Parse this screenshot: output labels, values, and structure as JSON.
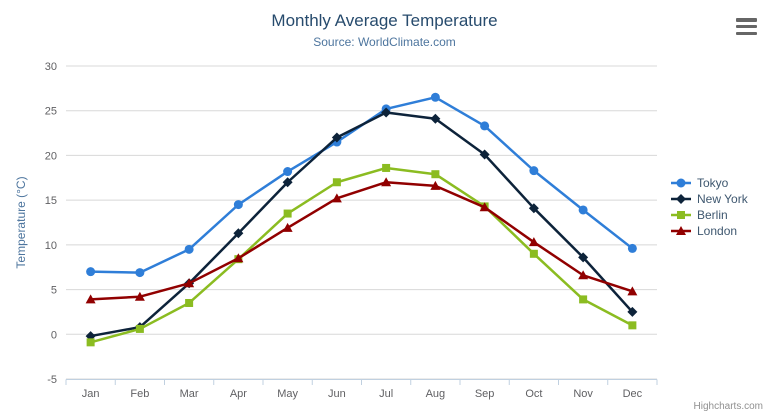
{
  "header": {
    "title": "Monthly Average Temperature",
    "subtitle": "Source: WorldClimate.com"
  },
  "icons": {
    "menu_icon": "hamburger"
  },
  "credits": "Highcharts.com",
  "chart_data": {
    "type": "line",
    "title": "Monthly Average Temperature",
    "subtitle": "Source: WorldClimate.com",
    "xlabel": "",
    "ylabel": "Temperature (°C)",
    "categories": [
      "Jan",
      "Feb",
      "Mar",
      "Apr",
      "May",
      "Jun",
      "Jul",
      "Aug",
      "Sep",
      "Oct",
      "Nov",
      "Dec"
    ],
    "ylim": [
      -5,
      30
    ],
    "yticks": [
      -5,
      0,
      5,
      10,
      15,
      20,
      25,
      30
    ],
    "grid": true,
    "legend_position": "right",
    "series": [
      {
        "name": "Tokyo",
        "color": "#2f7ed8",
        "marker": "circle",
        "values": [
          7.0,
          6.9,
          9.5,
          14.5,
          18.2,
          21.5,
          25.2,
          26.5,
          23.3,
          18.3,
          13.9,
          9.6
        ]
      },
      {
        "name": "New York",
        "color": "#0d233a",
        "marker": "diamond",
        "values": [
          -0.2,
          0.8,
          5.7,
          11.3,
          17.0,
          22.0,
          24.8,
          24.1,
          20.1,
          14.1,
          8.6,
          2.5
        ]
      },
      {
        "name": "Berlin",
        "color": "#8bbc21",
        "marker": "square",
        "values": [
          -0.9,
          0.6,
          3.5,
          8.4,
          13.5,
          17.0,
          18.6,
          17.9,
          14.3,
          9.0,
          3.9,
          1.0
        ]
      },
      {
        "name": "London",
        "color": "#910000",
        "marker": "triangle",
        "values": [
          3.9,
          4.2,
          5.7,
          8.5,
          11.9,
          15.2,
          17.0,
          16.6,
          14.2,
          10.3,
          6.6,
          4.8
        ]
      }
    ],
    "style": {
      "grid_color": "#d8d8d8",
      "axis_line_color": "#c0d0e0",
      "tick_label_color": "#606063",
      "axis_title_color": "#4d759e"
    }
  }
}
